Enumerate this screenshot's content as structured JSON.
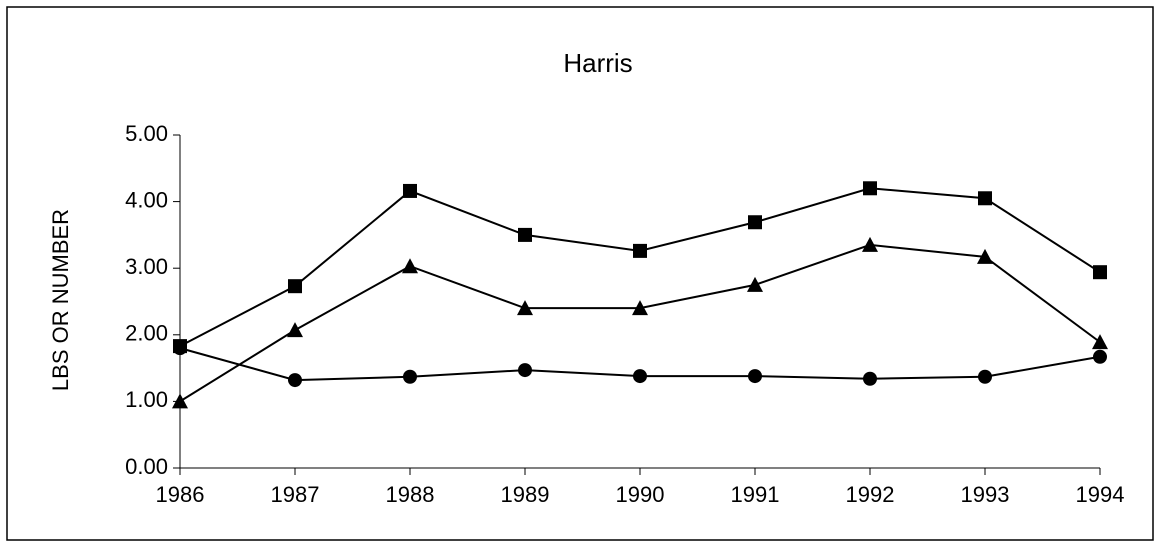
{
  "chart_data": {
    "type": "line",
    "title": "Harris",
    "y_label": "LBS OR NUMBER",
    "x": [
      1986,
      1987,
      1988,
      1989,
      1990,
      1991,
      1992,
      1993,
      1994
    ],
    "xlim": [
      1986,
      1994
    ],
    "xticks": [
      1986,
      1987,
      1988,
      1989,
      1990,
      1991,
      1992,
      1993,
      1994
    ],
    "ylim": [
      0,
      5
    ],
    "yticks": [
      {
        "value": 0,
        "label": "0.00"
      },
      {
        "value": 1,
        "label": "1.00"
      },
      {
        "value": 2,
        "label": "2.00"
      },
      {
        "value": 3,
        "label": "3.00"
      },
      {
        "value": 4,
        "label": "4.00"
      },
      {
        "value": 5,
        "label": "5.00"
      }
    ],
    "grid": false,
    "series": [
      {
        "color": "#000000",
        "marker": "square",
        "values": [
          1.83,
          2.73,
          4.16,
          3.5,
          3.26,
          3.69,
          4.2,
          4.05,
          2.94
        ]
      },
      {
        "color": "#000000",
        "marker": "triangle",
        "values": [
          1.0,
          2.07,
          3.03,
          2.4,
          2.4,
          2.75,
          3.35,
          3.17,
          1.89
        ]
      },
      {
        "color": "#000000",
        "marker": "circle",
        "values": [
          1.8,
          1.32,
          1.37,
          1.47,
          1.38,
          1.38,
          1.34,
          1.37,
          1.67
        ]
      }
    ]
  }
}
